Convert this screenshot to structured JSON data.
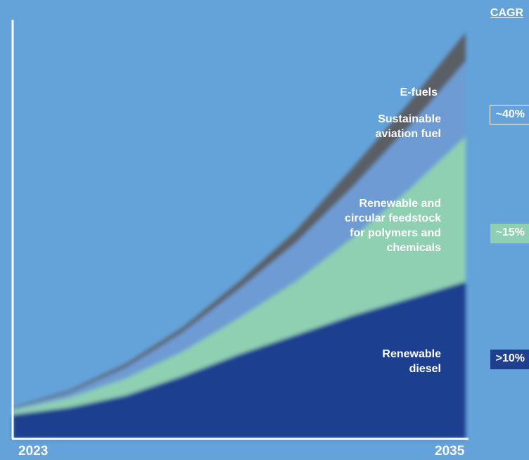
{
  "chart_data": {
    "type": "area",
    "stacked": true,
    "x_start_label": "2023",
    "x_end_label": "2035",
    "series": [
      {
        "name": "Renewable diesel",
        "color": "#1F3F8F",
        "label": "Renewable\ndiesel",
        "cagr": ">10%",
        "values": [
          1.0,
          1.3,
          1.8,
          2.6,
          3.5,
          4.3,
          5.1,
          5.8,
          6.5
        ]
      },
      {
        "name": "Renewable and circular feedstock for polymers and chemicals",
        "color": "#8FD0B2",
        "label": "Renewable and\ncircular feedstock\nfor polymers and\nchemicals",
        "cagr": "~15%",
        "values": [
          0.2,
          0.4,
          0.7,
          1.0,
          1.5,
          2.2,
          3.2,
          4.5,
          6.0
        ]
      },
      {
        "name": "Sustainable aviation fuel",
        "color": "#6E9BD3",
        "label": "Sustainable\naviation fuel",
        "cagr": "~40%",
        "values": [
          0.05,
          0.2,
          0.45,
          0.8,
          1.2,
          1.6,
          2.1,
          2.6,
          3.1
        ]
      },
      {
        "name": "E-fuels",
        "color": "#5A5E66",
        "label": "E-fuels",
        "values": [
          0.05,
          0.1,
          0.15,
          0.2,
          0.3,
          0.5,
          0.8,
          1.0,
          1.2
        ]
      }
    ]
  },
  "cagr_title": "CAGR",
  "badges": {
    "saf": "~40%",
    "polymers": "~15%",
    "diesel": ">10%"
  },
  "colors": {
    "background": "#64A3DA",
    "axis": "#FFFFFF"
  }
}
